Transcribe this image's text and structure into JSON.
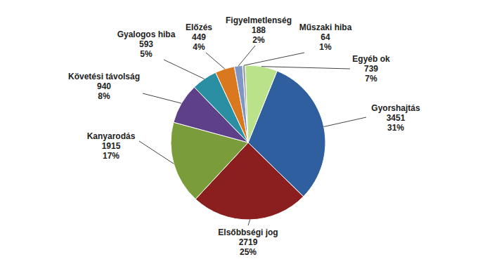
{
  "chart_data": {
    "type": "pie",
    "categories": [
      "Gyorshajtás",
      "Elsőbbségi jog",
      "Kanyarodás",
      "Követési távolság",
      "Gyalogos hiba",
      "Előzés",
      "Figyelmetlenség",
      "Műszaki hiba",
      "Egyéb ok"
    ],
    "values": [
      3451,
      2719,
      1915,
      940,
      593,
      449,
      188,
      64,
      739
    ],
    "percent_labels": [
      "31%",
      "25%",
      "17%",
      "8%",
      "5%",
      "4%",
      "2%",
      "1%",
      "7%"
    ],
    "colors": [
      "#2f5f9e",
      "#8b1f1f",
      "#7b9c3b",
      "#5d3f8a",
      "#2a8fa3",
      "#d9781f",
      "#7f96c4",
      "#a3a3a3",
      "#b9e28a"
    ],
    "data_labels": true
  }
}
